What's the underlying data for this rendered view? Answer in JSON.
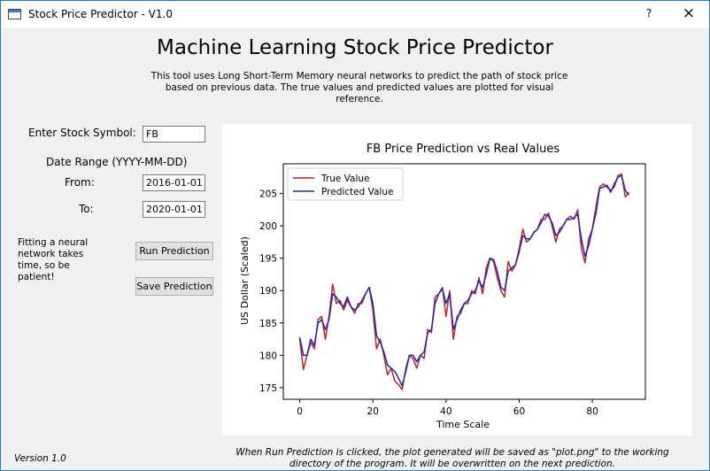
{
  "window": {
    "title": "Stock Price Predictor - V1.0",
    "help": "?",
    "close": "×"
  },
  "header": {
    "title": "Machine Learning Stock Price Predictor",
    "description": "This tool uses Long Short-Term Memory neural networks to predict the path of stock price based on previous data. The true values and predicted values are plotted for visual reference."
  },
  "form": {
    "symbol_label": "Enter Stock Symbol:",
    "symbol": "FB",
    "date_range_label": "Date Range (YYYY-MM-DD)",
    "from_label": "From:",
    "from": "2016-01-01",
    "to_label": "To:",
    "to": "2020-01-01",
    "note": "Fitting a neural network takes time, so be patient!",
    "run_button": "Run Prediction",
    "save_button": "Save Prediction"
  },
  "version": "Version 1.0",
  "footer": "When Run Prediction is clicked, the plot generated will be saved as \"plot.png\" to the working directory of the program. It will be overwritten on the next prediction.",
  "chart_data": {
    "type": "line",
    "title": "FB Price Prediction vs Real Values",
    "x_label": "Time Scale",
    "y_label": "US Dollar (Scaled)",
    "x": [
      0,
      1,
      2,
      3,
      4,
      5,
      6,
      7,
      8,
      9,
      10,
      11,
      12,
      13,
      14,
      15,
      16,
      17,
      18,
      19,
      20,
      21,
      22,
      23,
      24,
      25,
      26,
      27,
      28,
      29,
      30,
      31,
      32,
      33,
      34,
      35,
      36,
      37,
      38,
      39,
      40,
      41,
      42,
      43,
      44,
      45,
      46,
      47,
      48,
      49,
      50,
      51,
      52,
      53,
      54,
      55,
      56,
      57,
      58,
      59,
      60,
      61,
      62,
      63,
      64,
      65,
      66,
      67,
      68,
      69,
      70,
      71,
      72,
      73,
      74,
      75,
      76,
      77,
      78,
      79,
      80,
      81,
      82,
      83,
      84,
      85,
      86,
      87,
      88,
      89,
      90
    ],
    "series": [
      {
        "name": "True Value",
        "color": "#c42020",
        "values": [
          182.5,
          177.8,
          180,
          182,
          181,
          185.5,
          186,
          182.5,
          186,
          191,
          188,
          188.5,
          187,
          188.5,
          187.5,
          186.5,
          188,
          188,
          189.5,
          190.5,
          187,
          181,
          182.5,
          180,
          177,
          178,
          176,
          175.5,
          174.7,
          178,
          180,
          179.5,
          178,
          180,
          179.5,
          184,
          183.5,
          189,
          189.5,
          190.5,
          186,
          190,
          182.5,
          186,
          186.5,
          188,
          188,
          190,
          189.5,
          192,
          189.5,
          193.5,
          195,
          194.5,
          192,
          190,
          189,
          194.5,
          193,
          194,
          196.5,
          199.5,
          197.5,
          198,
          199,
          199.5,
          201,
          201,
          202,
          200,
          197.5,
          199.5,
          200,
          201,
          201.5,
          201,
          202.5,
          196.5,
          194.3,
          198,
          199.5,
          203,
          206,
          206.5,
          206,
          205.5,
          206,
          207.8,
          208,
          204.5,
          205.2
        ]
      },
      {
        "name": "Predicted Value",
        "color": "#2222bb",
        "values": [
          182.8,
          180,
          180,
          182.5,
          181.5,
          185,
          185.5,
          184,
          185.5,
          189.5,
          189,
          188,
          187.5,
          189,
          187.5,
          187,
          187.5,
          188.5,
          189.5,
          190.5,
          188,
          183,
          182,
          180.5,
          178.5,
          178,
          177.5,
          176.5,
          175.3,
          177.5,
          180,
          180,
          179,
          180,
          180.5,
          183.5,
          184,
          188,
          189.5,
          190.3,
          188,
          189.5,
          184,
          185.5,
          187,
          188,
          188.5,
          189.5,
          190,
          191.5,
          190.5,
          192.5,
          195,
          194.8,
          193,
          190.5,
          190,
          193,
          193.5,
          194,
          196,
          198.5,
          198,
          198,
          199,
          199.5,
          200.5,
          201.8,
          201.5,
          200.5,
          198.5,
          199,
          200,
          201,
          201,
          201.3,
          201.8,
          198,
          195.3,
          197,
          199.5,
          202,
          205.8,
          206,
          206.3,
          205.2,
          206.5,
          207.5,
          207.8,
          205.5,
          204.8
        ]
      }
    ],
    "xlim": [
      -4.5,
      94.5
    ],
    "ylim": [
      173.2,
      209.6
    ],
    "xticks": [
      0,
      20,
      40,
      60,
      80
    ],
    "yticks": [
      175,
      180,
      185,
      190,
      195,
      200,
      205
    ],
    "legend": "upper left"
  }
}
